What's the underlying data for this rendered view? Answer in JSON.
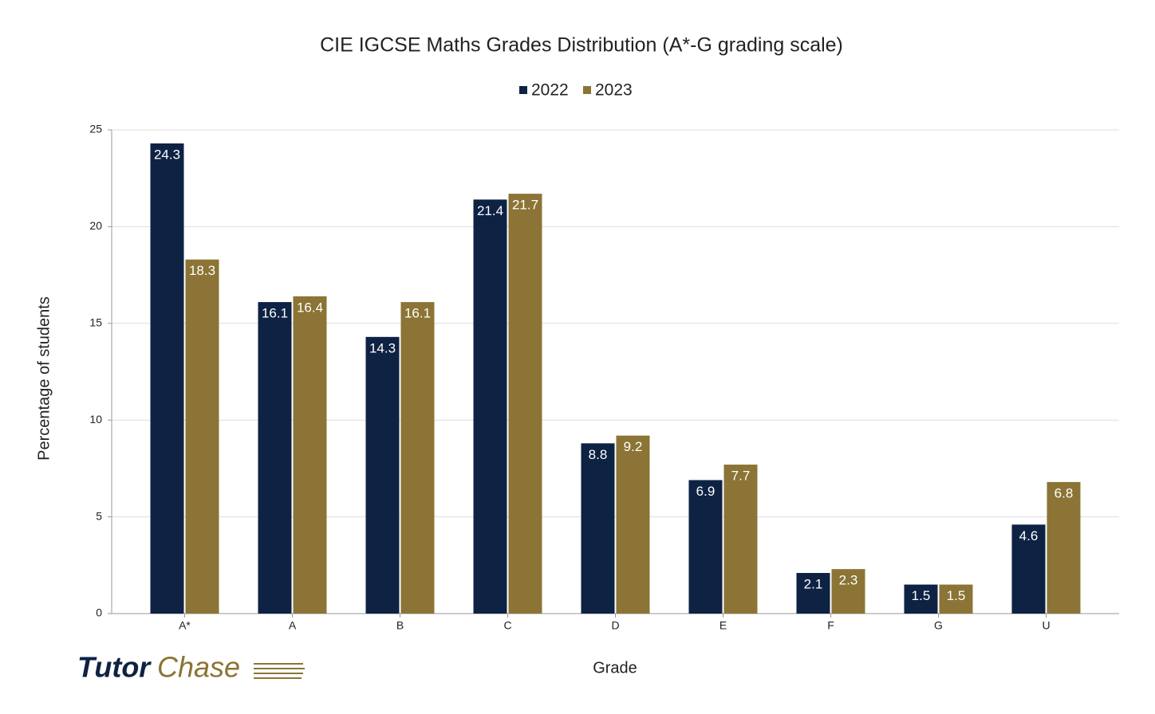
{
  "chart_data": {
    "type": "bar",
    "title": "CIE IGCSE Maths Grades Distribution (A*-G grading scale)",
    "x_label": "Grade",
    "y_label": "Percentage of students",
    "categories": [
      "A*",
      "A",
      "B",
      "C",
      "D",
      "E",
      "F",
      "G",
      "U"
    ],
    "series": [
      {
        "name": "2022",
        "color": "#0e2244",
        "values": [
          24.3,
          16.1,
          14.3,
          21.4,
          8.8,
          6.9,
          2.1,
          1.5,
          4.6
        ]
      },
      {
        "name": "2023",
        "color": "#8b7435",
        "values": [
          18.3,
          16.4,
          16.1,
          21.7,
          9.2,
          7.7,
          2.3,
          1.5,
          6.8
        ]
      }
    ],
    "ylim": [
      0,
      25
    ],
    "yticks": [
      0,
      5,
      10,
      15,
      20,
      25
    ],
    "grid": true,
    "legend": "top"
  },
  "logo": {
    "first": "Tutor",
    "second": "Chase"
  }
}
